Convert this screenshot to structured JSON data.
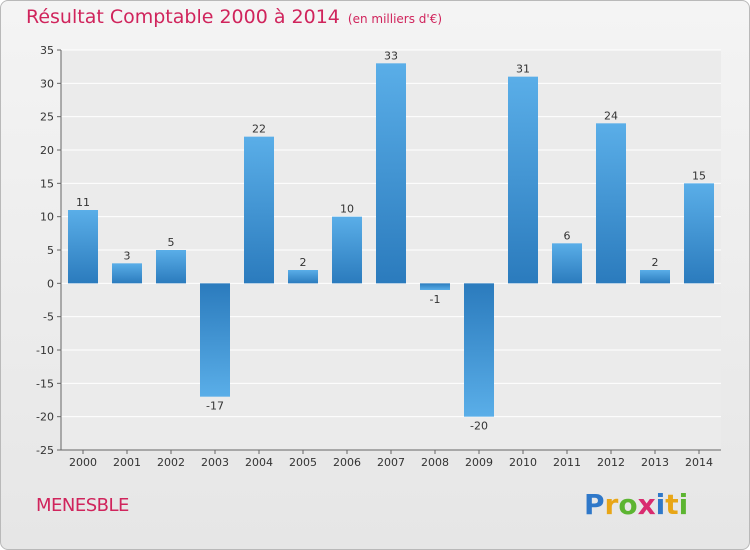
{
  "title": "Résultat Comptable 2000 à 2014",
  "unit": "(en milliers d'€)",
  "place": "MENESBLE",
  "logo": [
    "P",
    "r",
    "o",
    "x",
    "i",
    "t",
    "i"
  ],
  "logo_colors": [
    "#2f78c9",
    "#e8a617",
    "#5cb531",
    "#d92b6f",
    "#2f78c9",
    "#e8a617",
    "#5cb531"
  ],
  "colors": {
    "bar_top": "#5aaee8",
    "bar_bottom": "#2b7bbd",
    "title": "#d0245c"
  },
  "chart_data": {
    "type": "bar",
    "title": "Résultat Comptable 2000 à 2014",
    "subtitle": "(en milliers d'€)",
    "categories": [
      "2000",
      "2001",
      "2002",
      "2003",
      "2004",
      "2005",
      "2006",
      "2007",
      "2008",
      "2009",
      "2010",
      "2011",
      "2012",
      "2013",
      "2014"
    ],
    "values": [
      11,
      3,
      5,
      -17,
      22,
      2,
      10,
      33,
      -1,
      -20,
      31,
      6,
      24,
      2,
      15
    ],
    "ylim": [
      -25,
      35
    ],
    "yticks": [
      35,
      30,
      25,
      20,
      15,
      10,
      5,
      0,
      -5,
      -10,
      -15,
      -20,
      -25
    ],
    "xlabel": "",
    "ylabel": "",
    "grid": true
  }
}
